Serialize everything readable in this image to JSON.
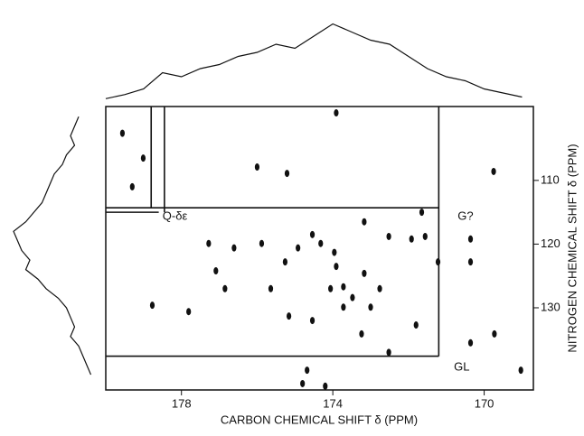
{
  "chart_data": {
    "type": "contour",
    "x_label": "CARBON CHEMICAL SHIFT δ (PPM)",
    "y_label": "NITROGEN CHEMICAL SHIFT δ (PPM)",
    "xlim": [
      180.0,
      168.7
    ],
    "ylim": [
      98.4,
      142.9
    ],
    "xticks": [
      178,
      174,
      170
    ],
    "yticks": [
      110,
      120,
      130
    ],
    "color": "#111111",
    "peaks": {
      "x": [
        179.56,
        179.3,
        179.01,
        177.28,
        176.61,
        175.88,
        175.26,
        174.92,
        174.54,
        174.32,
        173.96,
        173.91,
        174.06,
        173.72,
        173.17,
        172.52,
        171.92,
        171.22,
        170.36,
        171.65,
        173.17,
        176.0,
        175.21,
        173.91,
        169.75,
        178.77,
        177.81,
        175.16,
        174.54,
        173.72,
        173.0,
        171.56,
        173.24,
        172.52,
        169.73,
        169.03,
        174.8,
        174.68,
        174.2,
        177.09,
        176.85,
        175.64,
        172.76,
        173.48,
        170.36,
        171.8,
        170.36
      ],
      "y": [
        102.6,
        111.0,
        106.5,
        119.9,
        120.6,
        119.9,
        122.8,
        120.6,
        118.5,
        119.9,
        121.3,
        123.5,
        127.0,
        126.7,
        124.6,
        118.8,
        119.2,
        122.8,
        122.8,
        115.0,
        116.5,
        107.9,
        108.9,
        99.4,
        108.6,
        129.6,
        130.6,
        131.3,
        132.0,
        129.9,
        129.9,
        118.8,
        134.1,
        137.0,
        134.1,
        139.8,
        141.9,
        139.8,
        142.3,
        124.2,
        127.0,
        127.0,
        127.0,
        128.4,
        119.2,
        132.7,
        135.5
      ]
    },
    "guides": [
      [
        180.0,
        114.3,
        171.2,
        114.3
      ],
      [
        180.0,
        137.6,
        171.2,
        137.6
      ],
      [
        171.2,
        98.4,
        171.2,
        137.6
      ],
      [
        178.8,
        98.4,
        178.8,
        114.3
      ],
      [
        178.45,
        98.4,
        178.45,
        115.0
      ],
      [
        180.0,
        115.0,
        178.6,
        115.0
      ]
    ],
    "annotations": [
      {
        "text": "Q-δε",
        "x": 178.5,
        "y": 115.7
      },
      {
        "text": "G?",
        "x": 170.7,
        "y": 115.7
      },
      {
        "text": "GL",
        "x": 170.8,
        "y": 139.4
      }
    ],
    "top_projection": {
      "x": [
        180,
        179.5,
        179,
        178.5,
        178,
        177.5,
        177,
        176.5,
        176,
        175.5,
        175,
        174.5,
        174,
        173.5,
        173,
        172.5,
        172,
        171.5,
        171,
        170.5,
        170,
        169.5,
        169
      ],
      "values": [
        3,
        8,
        15,
        35,
        30,
        40,
        45,
        55,
        60,
        70,
        65,
        80,
        95,
        85,
        75,
        70,
        55,
        40,
        30,
        25,
        15,
        10,
        5
      ]
    },
    "left_projection": {
      "y": [
        100,
        101.5,
        103,
        104.5,
        106,
        107.5,
        109,
        110.5,
        112,
        113.5,
        115,
        116.5,
        118,
        119.5,
        121,
        122.5,
        124,
        125.5,
        127,
        128.5,
        130,
        131.5,
        133,
        134.5,
        136,
        137.5,
        139,
        140.5
      ],
      "values": [
        20,
        25,
        30,
        25,
        35,
        40,
        50,
        55,
        60,
        65,
        75,
        85,
        100,
        95,
        90,
        80,
        85,
        70,
        60,
        45,
        35,
        30,
        25,
        30,
        20,
        15,
        10,
        5
      ]
    }
  }
}
